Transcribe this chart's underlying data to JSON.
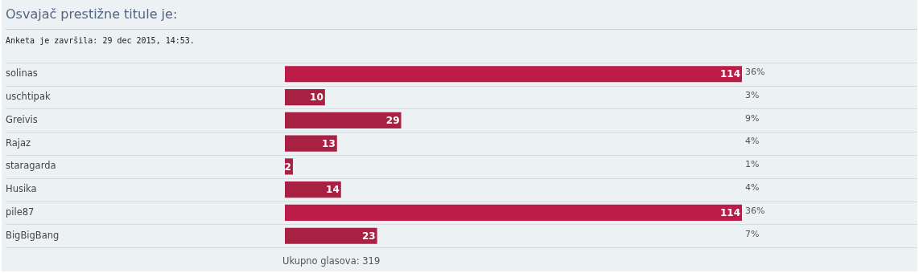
{
  "chart_data": {
    "type": "bar",
    "orientation": "horizontal",
    "title": "Osvajač prestižne titule je:",
    "subtitle": "Anketa je završila: 29 dec 2015, 14:53.",
    "categories": [
      "solinas",
      "uschtipak",
      "Greivis",
      "Rajaz",
      "staragarda",
      "Husika",
      "pile87",
      "BigBigBang"
    ],
    "values": [
      114,
      10,
      29,
      13,
      2,
      14,
      114,
      23
    ],
    "colors": [
      "#bd1c48",
      "#a82042",
      "#a82042",
      "#a82042",
      "#a82042",
      "#a82042",
      "#bd1c48",
      "#a82042"
    ],
    "value_labels": [
      "114",
      "10",
      "29",
      "13",
      "2",
      "14",
      "114",
      "23"
    ],
    "tick_labels": "y",
    "grid": "y",
    "legend": false,
    "annotations": [
      "36%",
      "3%",
      "9%",
      "4%",
      "1%",
      "4%",
      "36%",
      "7%",
      "Ukupno glasova: 319"
    ]
  }
}
